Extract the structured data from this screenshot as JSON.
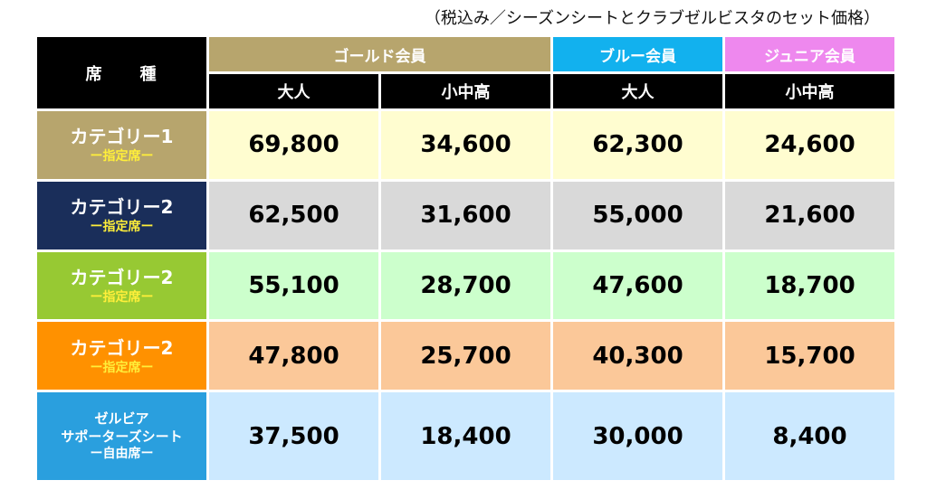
{
  "note": "（税込み／シーズンシートとクラブゼルビスタのセット価格）",
  "header": {
    "seat_label": "席　　種",
    "groups": [
      {
        "label": "ゴールド会員",
        "color": "#b7a56d"
      },
      {
        "label": "ブルー会員",
        "color": "#12b1ee"
      },
      {
        "label": "ジュニア会員",
        "color": "#ee88ee"
      }
    ],
    "subheaders": [
      "大人",
      "小中高",
      "大人",
      "小中高"
    ]
  },
  "rows": [
    {
      "line1": "カテゴリー1",
      "line2": "ー指定席ー",
      "color": "#b7a56d",
      "bg": "#fffdd0",
      "values": [
        "69,800",
        "34,600",
        "62,300",
        "24,600"
      ]
    },
    {
      "line1": "カテゴリー2",
      "line2": "ー指定席ー",
      "color": "#1a2e5a",
      "bg": "#d9d9d9",
      "values": [
        "62,500",
        "31,600",
        "55,000",
        "21,600"
      ]
    },
    {
      "line1": "カテゴリー2",
      "line2": "ー指定席ー",
      "color": "#97c933",
      "bg": "#ccffcc",
      "values": [
        "55,100",
        "28,700",
        "47,600",
        "18,700"
      ]
    },
    {
      "line1": "カテゴリー2",
      "line2": "ー指定席ー",
      "color": "#ff9100",
      "bg": "#fbc899",
      "values": [
        "47,800",
        "25,700",
        "40,300",
        "15,700"
      ]
    },
    {
      "line0": "ゼルビア",
      "line1": "サポーターズシート",
      "line2": "ー自由席ー",
      "color": "#2a9fde",
      "bg": "#cce9ff",
      "values": [
        "37,500",
        "18,400",
        "30,000",
        "8,400"
      ]
    }
  ]
}
